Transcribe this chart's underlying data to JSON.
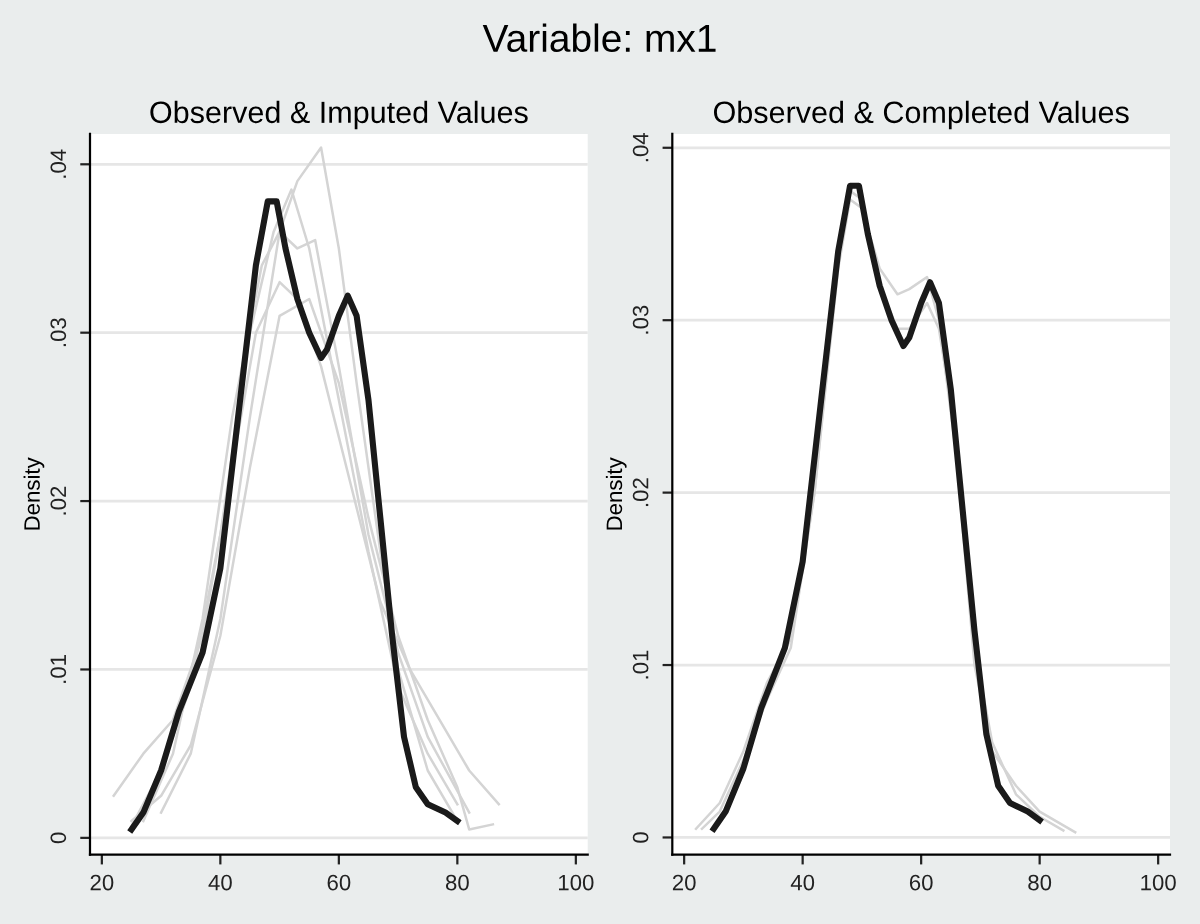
{
  "chart_data": [
    {
      "type": "line",
      "title": "Observed & Imputed Values",
      "ylabel": "Density",
      "annotations": [
        "Variable: mx1"
      ],
      "grid": "y",
      "xlim": [
        18,
        102
      ],
      "ylim": [
        -0.001,
        0.0418
      ],
      "xticks": [
        20,
        40,
        60,
        80,
        100
      ],
      "yticks": [
        {
          "value": 0,
          "label": "0"
        },
        {
          "value": 0.01,
          "label": ".01"
        },
        {
          "value": 0.02,
          "label": ".02"
        },
        {
          "value": 0.03,
          "label": ".03"
        },
        {
          "value": 0.04,
          "label": ".04"
        }
      ],
      "series": [
        {
          "color": "#d4d4d4",
          "x": [
            30,
            35,
            40,
            45,
            50,
            53,
            57,
            60,
            63,
            67,
            70,
            75,
            80
          ],
          "values": [
            0.0015,
            0.005,
            0.013,
            0.025,
            0.036,
            0.039,
            0.041,
            0.035,
            0.027,
            0.017,
            0.01,
            0.004,
            0.001
          ]
        },
        {
          "color": "#d4d4d4",
          "x": [
            25,
            30,
            35,
            40,
            45,
            49,
            52,
            55,
            60,
            65,
            70,
            75,
            80
          ],
          "values": [
            0.0007,
            0.004,
            0.009,
            0.018,
            0.03,
            0.036,
            0.0385,
            0.035,
            0.026,
            0.017,
            0.009,
            0.005,
            0.002
          ]
        },
        {
          "color": "#d4d4d4",
          "x": [
            27,
            32,
            37,
            42,
            47,
            50,
            53,
            56,
            60,
            65,
            70,
            75,
            82
          ],
          "values": [
            0.001,
            0.005,
            0.013,
            0.025,
            0.034,
            0.036,
            0.035,
            0.0355,
            0.028,
            0.018,
            0.011,
            0.006,
            0.0015
          ]
        },
        {
          "color": "#d4d4d4",
          "x": [
            22,
            27,
            32,
            37,
            42,
            46,
            50,
            53,
            57,
            62,
            67,
            72,
            77,
            82,
            87
          ],
          "values": [
            0.0025,
            0.005,
            0.007,
            0.012,
            0.022,
            0.03,
            0.033,
            0.032,
            0.028,
            0.021,
            0.014,
            0.01,
            0.007,
            0.004,
            0.002
          ]
        },
        {
          "color": "#d4d4d4",
          "x": [
            25,
            30,
            35,
            40,
            45,
            50,
            55,
            60,
            65,
            70,
            75,
            80,
            82,
            86
          ],
          "values": [
            0.001,
            0.0025,
            0.0055,
            0.012,
            0.022,
            0.031,
            0.032,
            0.027,
            0.019,
            0.012,
            0.007,
            0.003,
            0.0005,
            0.0008
          ]
        },
        {
          "color": "#1a1a1a",
          "x": [
            25,
            27,
            30,
            33,
            37,
            40,
            43,
            46,
            48,
            49.5,
            51,
            53,
            55,
            57,
            58,
            60,
            61.5,
            63,
            65,
            67,
            69,
            71,
            73,
            75,
            78,
            80
          ],
          "values": [
            0.0005,
            0.0015,
            0.004,
            0.0075,
            0.011,
            0.016,
            0.025,
            0.034,
            0.0378,
            0.0378,
            0.035,
            0.032,
            0.03,
            0.0285,
            0.029,
            0.031,
            0.0322,
            0.031,
            0.026,
            0.019,
            0.012,
            0.006,
            0.003,
            0.002,
            0.0015,
            0.001
          ]
        }
      ]
    },
    {
      "type": "line",
      "title": "Observed & Completed Values",
      "ylabel": "Density",
      "grid": "y",
      "xlim": [
        18,
        102
      ],
      "ylim": [
        -0.001,
        0.0408
      ],
      "xticks": [
        20,
        40,
        60,
        80,
        100
      ],
      "yticks": [
        {
          "value": 0,
          "label": "0"
        },
        {
          "value": 0.01,
          "label": ".01"
        },
        {
          "value": 0.02,
          "label": ".02"
        },
        {
          "value": 0.03,
          "label": ".03"
        },
        {
          "value": 0.04,
          "label": ".04"
        }
      ],
      "series": [
        {
          "color": "#d4d4d4",
          "x": [
            22,
            26,
            30,
            34,
            38,
            42,
            46,
            48,
            50,
            53,
            56,
            58,
            61,
            63,
            66,
            69,
            72,
            76,
            80,
            86
          ],
          "values": [
            0.0005,
            0.002,
            0.005,
            0.009,
            0.0115,
            0.02,
            0.033,
            0.037,
            0.0365,
            0.033,
            0.0315,
            0.0318,
            0.0325,
            0.03,
            0.022,
            0.01,
            0.005,
            0.003,
            0.0015,
            0.0003
          ]
        },
        {
          "color": "#d4d4d4",
          "x": [
            23,
            26,
            30,
            34,
            38,
            42,
            46,
            48,
            50,
            53,
            56,
            58,
            61,
            63,
            66,
            69,
            72,
            76,
            80,
            84
          ],
          "values": [
            0.0005,
            0.0015,
            0.0045,
            0.008,
            0.011,
            0.02,
            0.0335,
            0.0375,
            0.037,
            0.032,
            0.0295,
            0.0295,
            0.031,
            0.0295,
            0.023,
            0.011,
            0.0055,
            0.0025,
            0.0012,
            0.0004
          ]
        },
        {
          "color": "#1a1a1a",
          "x": [
            25,
            27,
            30,
            33,
            37,
            40,
            43,
            46,
            48,
            49.5,
            51,
            53,
            55,
            57,
            58,
            60,
            61.5,
            63,
            65,
            67,
            69,
            71,
            73,
            75,
            78,
            80
          ],
          "values": [
            0.0005,
            0.0015,
            0.004,
            0.0075,
            0.011,
            0.016,
            0.025,
            0.034,
            0.0378,
            0.0378,
            0.035,
            0.032,
            0.03,
            0.0285,
            0.029,
            0.031,
            0.0322,
            0.031,
            0.026,
            0.019,
            0.012,
            0.006,
            0.003,
            0.002,
            0.0015,
            0.001
          ]
        }
      ]
    }
  ]
}
